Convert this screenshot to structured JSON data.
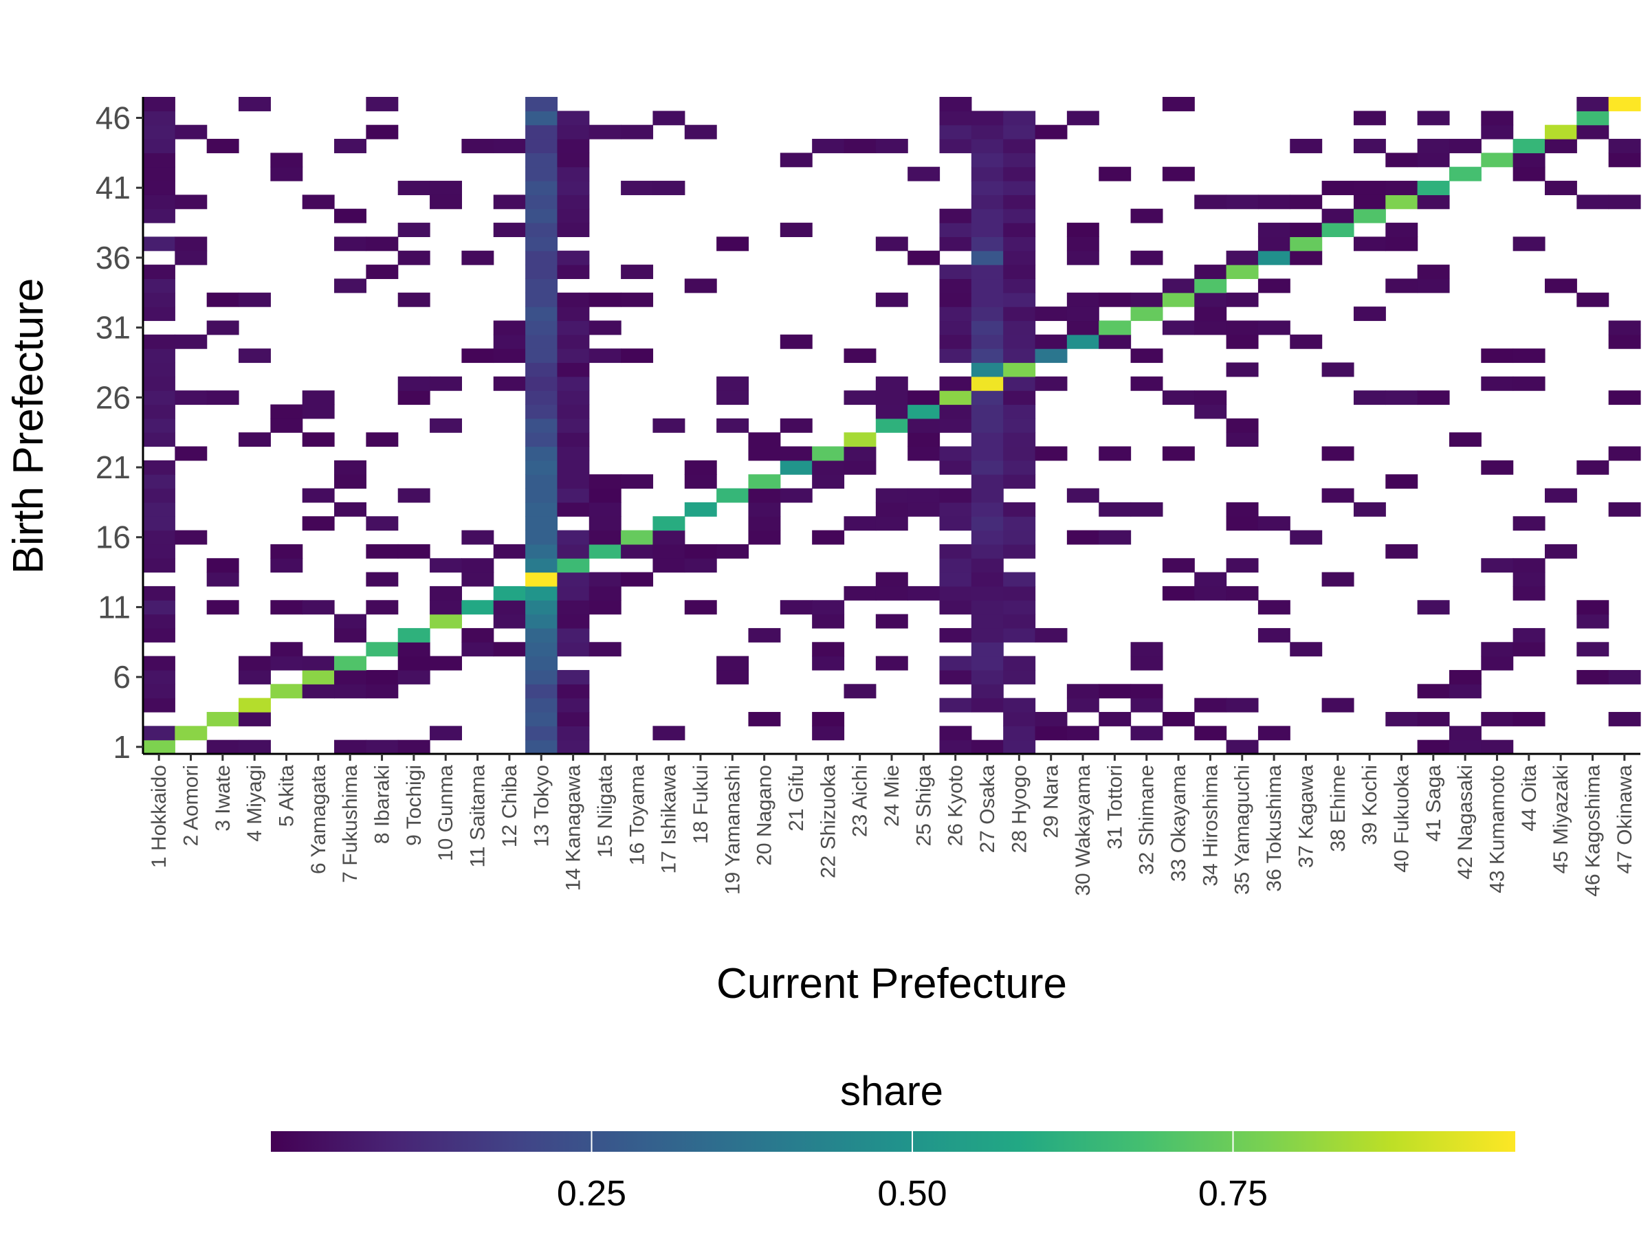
{
  "chart_data": {
    "type": "heatmap",
    "title": "",
    "xlabel": "Current Prefecture",
    "ylabel": "Birth Prefecture",
    "x_categories": [
      "1 Hokkaido",
      "2 Aomori",
      "3 Iwate",
      "4 Miyagi",
      "5 Akita",
      "6 Yamagata",
      "7 Fukushima",
      "8 Ibaraki",
      "9 Tochigi",
      "10 Gunma",
      "11 Saitama",
      "12 Chiba",
      "13 Tokyo",
      "14 Kanagawa",
      "15 Niigata",
      "16 Toyama",
      "17 Ishikawa",
      "18 Fukui",
      "19 Yamanashi",
      "20 Nagano",
      "21 Gifu",
      "22 Shizuoka",
      "23 Aichi",
      "24 Mie",
      "25 Shiga",
      "26 Kyoto",
      "27 Osaka",
      "28 Hyogo",
      "29 Nara",
      "30 Wakayama",
      "31 Tottori",
      "32 Shimane",
      "33 Okayama",
      "34 Hiroshima",
      "35 Yamaguchi",
      "36 Tokushima",
      "37 Kagawa",
      "38 Ehime",
      "39 Kochi",
      "40 Fukuoka",
      "41 Saga",
      "42 Nagasaki",
      "43 Kumamoto",
      "44 Oita",
      "45 Miyazaki",
      "46 Kagoshima",
      "47 Okinawa"
    ],
    "y_range": [
      1,
      47
    ],
    "y_ticks": [
      "1",
      "6",
      "11",
      "16",
      "21",
      "26",
      "31",
      "36",
      "41",
      "46"
    ],
    "color_scale": {
      "title": "share",
      "palette": "viridis",
      "range": [
        0.0,
        0.97
      ],
      "ticks": [
        "0.25",
        "0.50",
        "0.75"
      ],
      "tick_values": [
        0.25,
        0.5,
        0.75
      ]
    },
    "grid": false,
    "legend_position": "bottom",
    "diagonal_share": [
      0.78,
      0.8,
      0.8,
      0.86,
      0.8,
      0.8,
      0.7,
      0.66,
      0.62,
      0.8,
      0.58,
      0.57,
      0.97,
      0.66,
      0.64,
      0.74,
      0.6,
      0.56,
      0.64,
      0.7,
      0.5,
      0.72,
      0.84,
      0.62,
      0.56,
      0.8,
      0.95,
      0.78,
      0.38,
      0.48,
      0.72,
      0.74,
      0.76,
      0.7,
      0.76,
      0.48,
      0.74,
      0.66,
      0.7,
      0.78,
      0.62,
      0.68,
      0.72,
      0.64,
      0.86,
      0.66,
      0.97
    ],
    "tokyo_column_share": [
      0.26,
      0.22,
      0.26,
      0.24,
      0.2,
      0.26,
      0.28,
      0.3,
      0.32,
      0.38,
      0.42,
      0.5,
      0.97,
      0.4,
      0.34,
      0.3,
      0.3,
      0.3,
      0.28,
      0.28,
      0.3,
      0.28,
      0.22,
      0.24,
      0.18,
      0.16,
      0.14,
      0.16,
      0.2,
      0.2,
      0.22,
      0.24,
      0.2,
      0.2,
      0.18,
      0.18,
      0.22,
      0.2,
      0.24,
      0.22,
      0.24,
      0.2,
      0.2,
      0.16,
      0.16,
      0.28,
      0.2
    ],
    "osaka_column_share": [
      0.02,
      0.0,
      0.0,
      0.04,
      0.06,
      0.08,
      0.1,
      0.1,
      0.06,
      0.06,
      0.06,
      0.05,
      0.04,
      0.05,
      0.08,
      0.1,
      0.12,
      0.1,
      0.08,
      0.08,
      0.12,
      0.1,
      0.1,
      0.12,
      0.12,
      0.14,
      0.95,
      0.44,
      0.18,
      0.14,
      0.16,
      0.12,
      0.1,
      0.1,
      0.1,
      0.26,
      0.14,
      0.1,
      0.1,
      0.08,
      0.1,
      0.08,
      0.1,
      0.08,
      0.06,
      0.04,
      0.0
    ]
  }
}
